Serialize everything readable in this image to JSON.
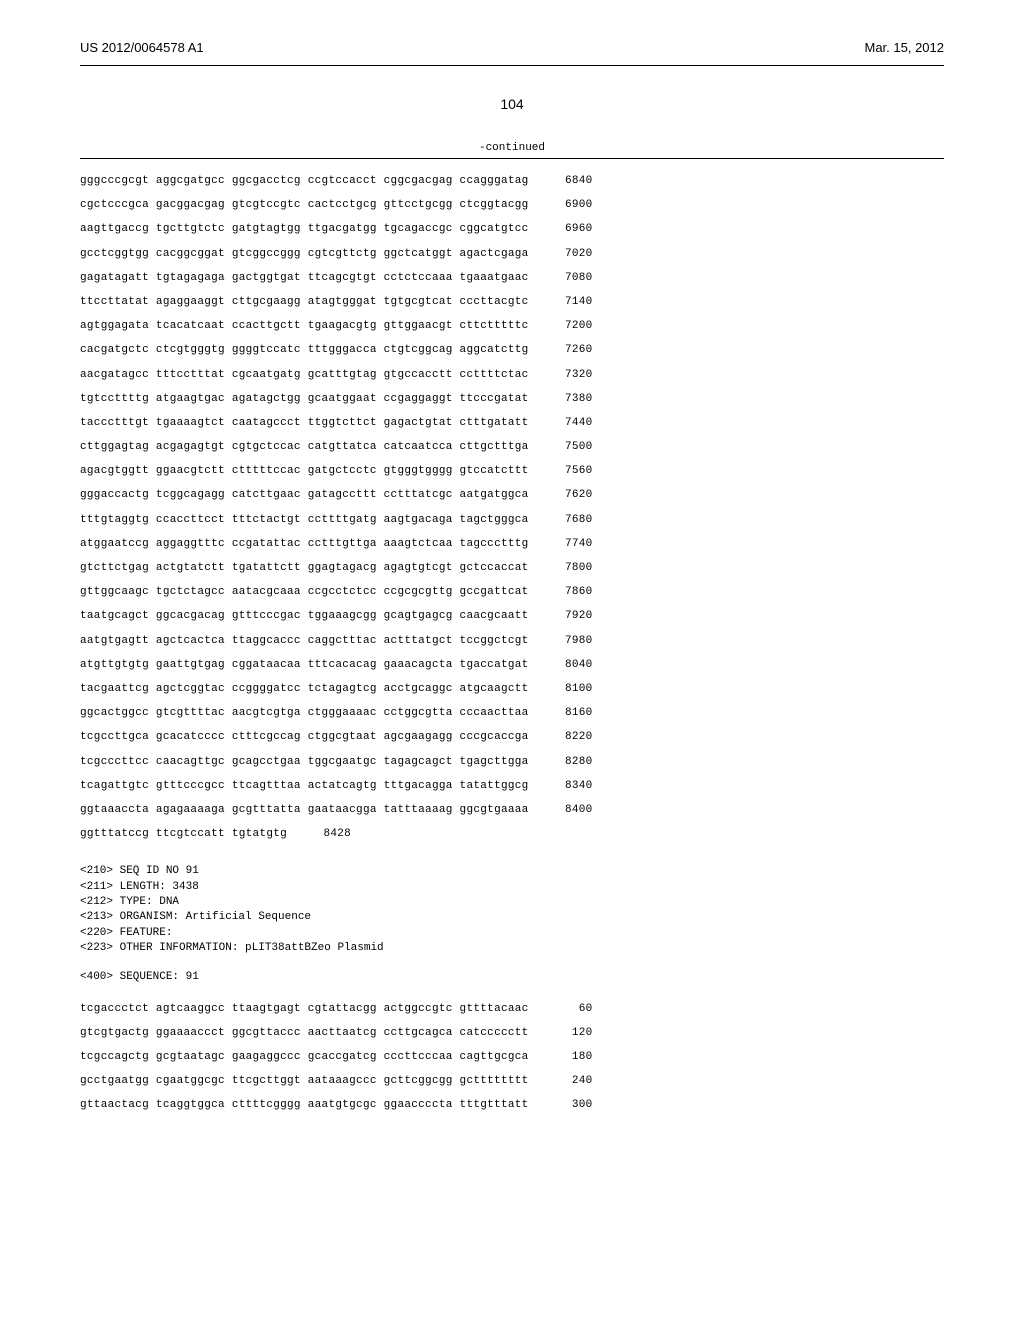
{
  "header": {
    "pub_number": "US 2012/0064578 A1",
    "pub_date": "Mar. 15, 2012",
    "page_number": "104"
  },
  "continued_label": "-continued",
  "seq1": [
    {
      "text": "gggcccgcgt aggcgatgcc ggcgacctcg ccgtccacct cggcgacgag ccagggatag",
      "num": "6840"
    },
    {
      "text": "cgctcccgca gacggacgag gtcgtccgtc cactcctgcg gttcctgcgg ctcggtacgg",
      "num": "6900"
    },
    {
      "text": "aagttgaccg tgcttgtctc gatgtagtgg ttgacgatgg tgcagaccgc cggcatgtcc",
      "num": "6960"
    },
    {
      "text": "gcctcggtgg cacggcggat gtcggccggg cgtcgttctg ggctcatggt agactcgaga",
      "num": "7020"
    },
    {
      "text": "gagatagatt tgtagagaga gactggtgat ttcagcgtgt cctctccaaa tgaaatgaac",
      "num": "7080"
    },
    {
      "text": "ttccttatat agaggaaggt cttgcgaagg atagtgggat tgtgcgtcat cccttacgtc",
      "num": "7140"
    },
    {
      "text": "agtggagata tcacatcaat ccacttgctt tgaagacgtg gttggaacgt cttctttttc",
      "num": "7200"
    },
    {
      "text": "cacgatgctc ctcgtgggtg ggggtccatc tttgggacca ctgtcggcag aggcatcttg",
      "num": "7260"
    },
    {
      "text": "aacgatagcc tttcctttat cgcaatgatg gcatttgtag gtgccacctt ccttttctac",
      "num": "7320"
    },
    {
      "text": "tgtccttttg atgaagtgac agatagctgg gcaatggaat ccgaggaggt ttcccgatat",
      "num": "7380"
    },
    {
      "text": "taccctttgt tgaaaagtct caatagccct ttggtcttct gagactgtat ctttgatatt",
      "num": "7440"
    },
    {
      "text": "cttggagtag acgagagtgt cgtgctccac catgttatca catcaatcca cttgctttga",
      "num": "7500"
    },
    {
      "text": "agacgtggtt ggaacgtctt ctttttccac gatgctcctc gtgggtgggg gtccatcttt",
      "num": "7560"
    },
    {
      "text": "gggaccactg tcggcagagg catcttgaac gatagccttt cctttatcgc aatgatggca",
      "num": "7620"
    },
    {
      "text": "tttgtaggtg ccaccttcct tttctactgt ccttttgatg aagtgacaga tagctgggca",
      "num": "7680"
    },
    {
      "text": "atggaatccg aggaggtttc ccgatattac cctttgttga aaagtctcaa tagccctttg",
      "num": "7740"
    },
    {
      "text": "gtcttctgag actgtatctt tgatattctt ggagtagacg agagtgtcgt gctccaccat",
      "num": "7800"
    },
    {
      "text": "gttggcaagc tgctctagcc aatacgcaaa ccgcctctcc ccgcgcgttg gccgattcat",
      "num": "7860"
    },
    {
      "text": "taatgcagct ggcacgacag gtttcccgac tggaaagcgg gcagtgagcg caacgcaatt",
      "num": "7920"
    },
    {
      "text": "aatgtgagtt agctcactca ttaggcaccc caggctttac actttatgct tccggctcgt",
      "num": "7980"
    },
    {
      "text": "atgttgtgtg gaattgtgag cggataacaa tttcacacag gaaacagcta tgaccatgat",
      "num": "8040"
    },
    {
      "text": "tacgaattcg agctcggtac ccggggatcc tctagagtcg acctgcaggc atgcaagctt",
      "num": "8100"
    },
    {
      "text": "ggcactggcc gtcgttttac aacgtcgtga ctgggaaaac cctggcgtta cccaacttaa",
      "num": "8160"
    },
    {
      "text": "tcgccttgca gcacatcccc ctttcgccag ctggcgtaat agcgaagagg cccgcaccga",
      "num": "8220"
    },
    {
      "text": "tcgcccttcc caacagttgc gcagcctgaa tggcgaatgc tagagcagct tgagcttgga",
      "num": "8280"
    },
    {
      "text": "tcagattgtc gtttcccgcc ttcagtttaa actatcagtg tttgacagga tatattggcg",
      "num": "8340"
    },
    {
      "text": "ggtaaaccta agagaaaaga gcgtttatta gaataacgga tatttaaaag ggcgtgaaaa",
      "num": "8400"
    },
    {
      "text": "ggtttatccg ttcgtccatt tgtatgtg",
      "num": "8428"
    }
  ],
  "metadata": {
    "seq_id": "<210> SEQ ID NO 91",
    "length": "<211> LENGTH: 3438",
    "type": "<212> TYPE: DNA",
    "organism": "<213> ORGANISM: Artificial Sequence",
    "feature": "<220> FEATURE:",
    "other": "<223> OTHER INFORMATION: pLIT38attBZeo Plasmid"
  },
  "sequence_label": "<400> SEQUENCE: 91",
  "seq2": [
    {
      "text": "tcgaccctct agtcaaggcc ttaagtgagt cgtattacgg actggccgtc gttttacaac",
      "num": "60"
    },
    {
      "text": "gtcgtgactg ggaaaaccct ggcgttaccc aacttaatcg ccttgcagca catccccctt",
      "num": "120"
    },
    {
      "text": "tcgccagctg gcgtaatagc gaagaggccc gcaccgatcg cccttcccaa cagttgcgca",
      "num": "180"
    },
    {
      "text": "gcctgaatgg cgaatggcgc ttcgcttggt aataaagccc gcttcggcgg gctttttttt",
      "num": "240"
    },
    {
      "text": "gttaactacg tcaggtggca cttttcgggg aaatgtgcgc ggaaccccta tttgtttatt",
      "num": "300"
    }
  ]
}
